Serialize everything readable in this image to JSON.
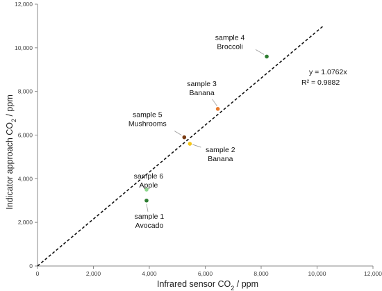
{
  "chart_data": {
    "type": "scatter",
    "xlabel": {
      "pre": "Infrared sensor CO",
      "sub": "2",
      "post": " / ppm"
    },
    "ylabel": {
      "pre": "Indicator approach CO",
      "sub": "2",
      "post": " / ppm"
    },
    "xlim": [
      0,
      12000
    ],
    "ylim": [
      0,
      12000
    ],
    "xticks": [
      0,
      2000,
      4000,
      6000,
      8000,
      10000,
      12000
    ],
    "yticks": [
      0,
      2000,
      4000,
      6000,
      8000,
      10000,
      12000
    ],
    "xtick_labels": [
      "0",
      "2,000",
      "4,000",
      "6,000",
      "8,000",
      "10,000",
      "12,000"
    ],
    "ytick_labels": [
      "0",
      "2,000",
      "4,000",
      "6,000",
      "8,000",
      "10,000",
      "12,000"
    ],
    "grid": false,
    "points": [
      {
        "x": 3900,
        "y": 3000,
        "line1": "sample 1",
        "line2": "Avocado",
        "color": "#2e7d32"
      },
      {
        "x": 5450,
        "y": 5600,
        "line1": "sample 2",
        "line2": "Banana",
        "color": "#f5c518"
      },
      {
        "x": 6450,
        "y": 7200,
        "line1": "sample 3",
        "line2": "Banana",
        "color": "#e8792b"
      },
      {
        "x": 8200,
        "y": 9600,
        "line1": "sample 4",
        "line2": "Broccoli",
        "color": "#2e7d32"
      },
      {
        "x": 5250,
        "y": 5900,
        "line1": "sample 5",
        "line2": "Mushrooms",
        "color": "#7a3b12"
      },
      {
        "x": 3900,
        "y": 3500,
        "line1": "sample 6",
        "line2": "Apple",
        "color": "#8fd88f"
      }
    ],
    "fit": {
      "slope": 1.0762,
      "x_range": [
        0,
        10200
      ],
      "style": "dashed"
    },
    "equation": "y = 1.0762x",
    "r_squared": "R² = 0.9882"
  }
}
